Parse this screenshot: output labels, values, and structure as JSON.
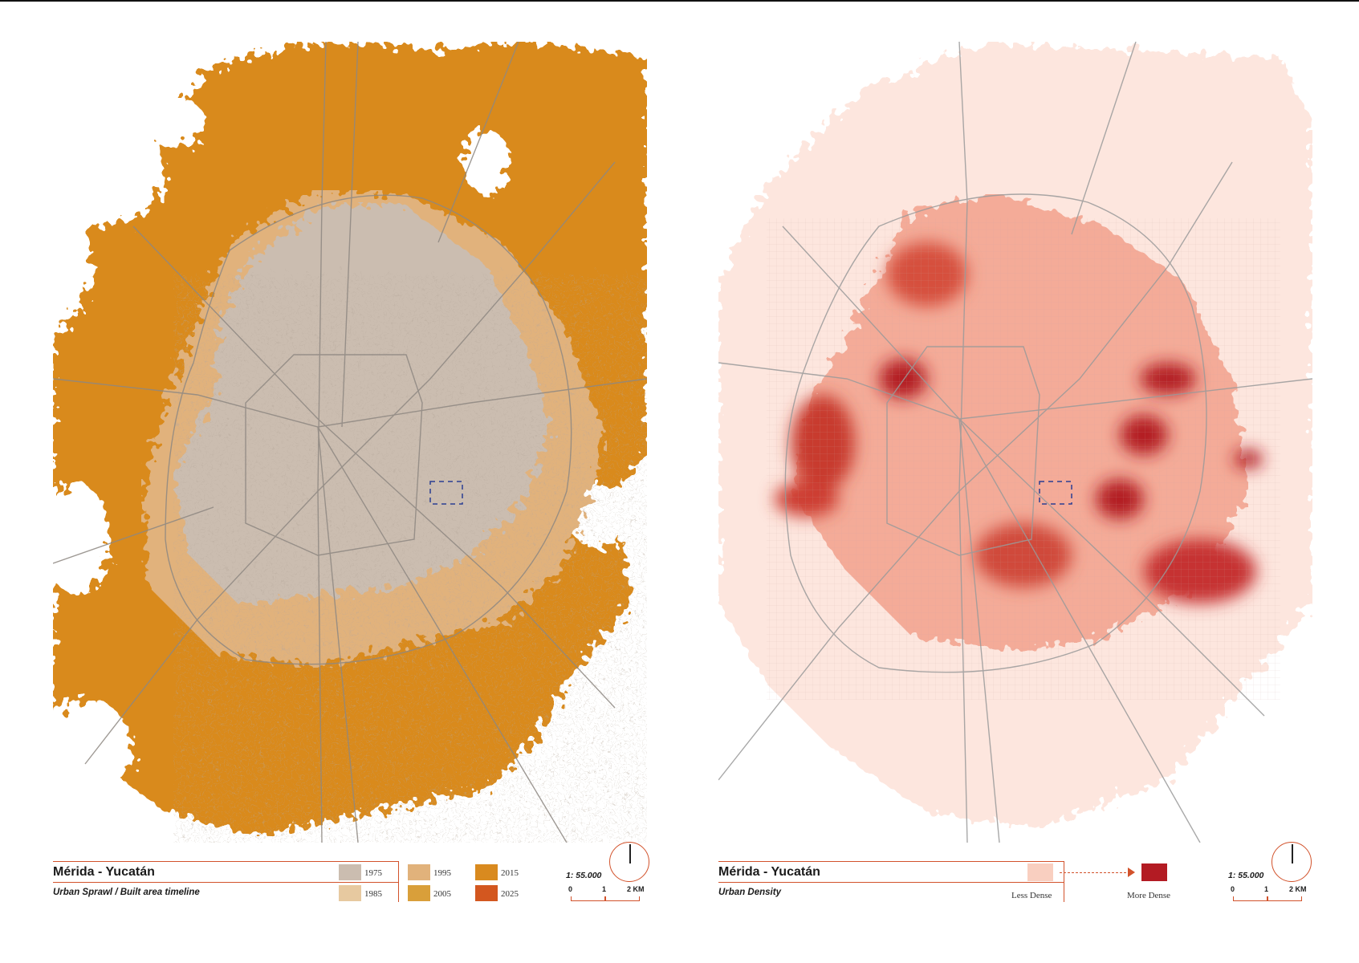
{
  "left_panel": {
    "title": "Mérida - Yucatán",
    "subtitle": "Urban Sprawl / Built area timeline",
    "legend": [
      {
        "label": "1975",
        "color": "#cbbdb0"
      },
      {
        "label": "1985",
        "color": "#e7c9a0"
      },
      {
        "label": "1995",
        "color": "#e1b27b"
      },
      {
        "label": "2005",
        "color": "#d99f3a"
      },
      {
        "label": "2015",
        "color": "#d98a1f"
      },
      {
        "label": "2025",
        "color": "#d3571f"
      }
    ],
    "scale": {
      "ratio": "1: 55.000",
      "ticks": [
        "0",
        "1",
        "2 KM"
      ]
    }
  },
  "right_panel": {
    "title": "Mérida - Yucatán",
    "subtitle": "Urban Density",
    "legend": {
      "low": "Less Dense",
      "high": "More Dense",
      "low_color": "#f9cfc0",
      "high_color": "#b31b23"
    },
    "scale": {
      "ratio": "1: 55.000",
      "ticks": [
        "0",
        "1",
        "2 KM"
      ]
    }
  },
  "colors": {
    "accent": "#d2522b"
  }
}
